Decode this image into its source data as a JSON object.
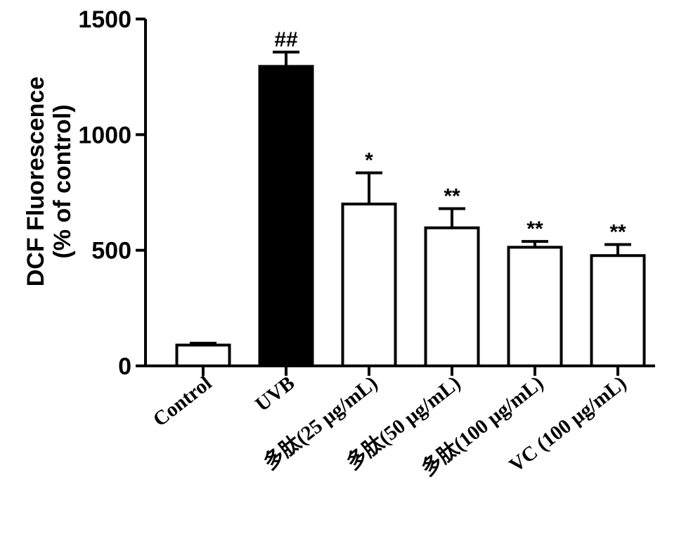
{
  "chart_data": {
    "type": "bar",
    "title": "",
    "ylabel_line1": "DCF Fluorescence",
    "ylabel_line2": "(% of control)",
    "ylim": [
      0,
      1500
    ],
    "yticks": [
      "0",
      "500",
      "1000",
      "1500"
    ],
    "categories": [
      "Control",
      "UVB",
      "多肽(25 μg/mL)",
      "多肽(50 μg/mL)",
      "多肽(100 μg/mL)",
      "VC (100 μg/mL)"
    ],
    "values": [
      90,
      1295,
      700,
      597,
      513,
      477
    ],
    "errors": [
      8,
      62,
      135,
      83,
      25,
      48
    ],
    "significance": [
      "",
      "##",
      "*",
      "**",
      "**",
      "**"
    ],
    "bar_colors": [
      "#ffffff",
      "#000000",
      "#ffffff",
      "#ffffff",
      "#ffffff",
      "#ffffff"
    ]
  }
}
